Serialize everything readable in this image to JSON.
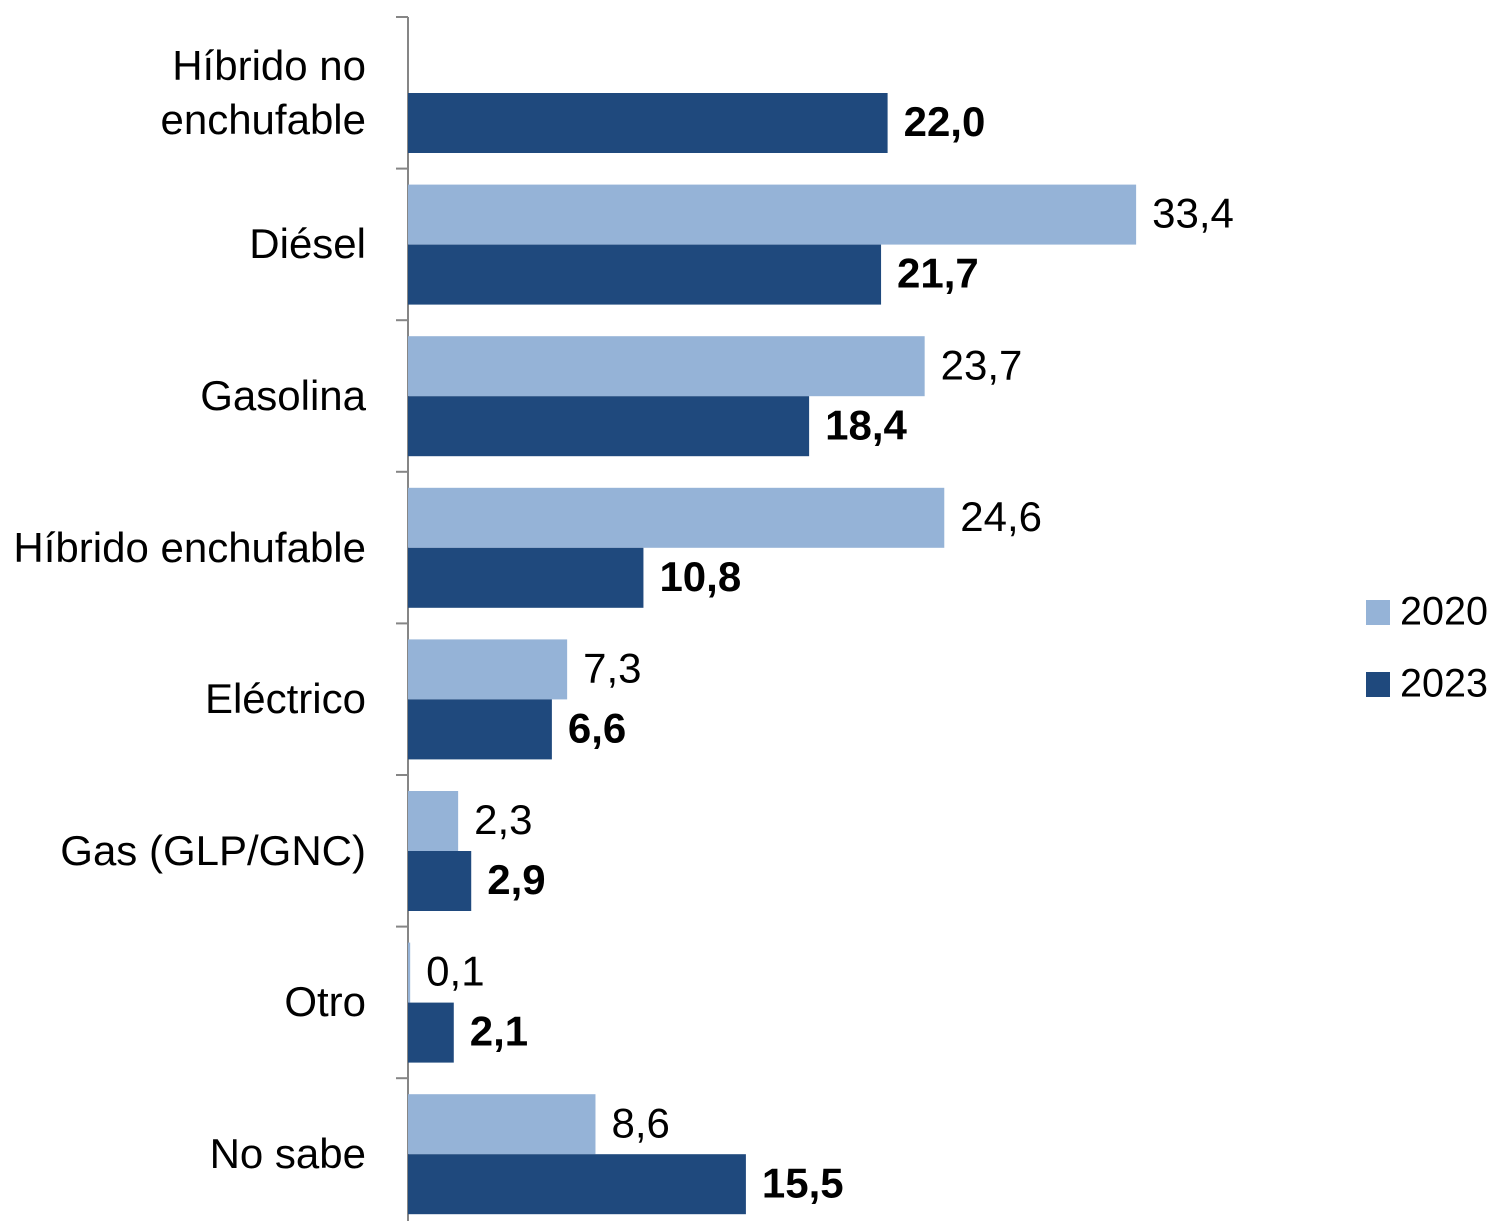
{
  "chart_data": {
    "type": "hbar",
    "categories": [
      "Híbrido no enchufable",
      "Diésel",
      "Gasolina",
      "Híbrido enchufable",
      "Eléctrico",
      "Gas (GLP/GNC)",
      "Otro",
      "No sabe"
    ],
    "series": [
      {
        "name": "2020",
        "color": "#95b3d7",
        "values": [
          null,
          33.4,
          23.7,
          24.6,
          7.3,
          2.3,
          0.1,
          8.6
        ],
        "value_labels": [
          null,
          "33,4",
          "23,7",
          "24,6",
          "7,3",
          "2,3",
          "0,1",
          "8,6"
        ]
      },
      {
        "name": "2023",
        "color": "#1f497d",
        "values": [
          22.0,
          21.7,
          18.4,
          10.8,
          6.6,
          2.9,
          2.1,
          15.5
        ],
        "value_labels": [
          "22,0",
          "21,7",
          "18,4",
          "10,8",
          "6,6",
          "2,9",
          "2,1",
          "15,5"
        ]
      }
    ],
    "xlim": [
      0,
      40
    ],
    "legend": "right"
  }
}
